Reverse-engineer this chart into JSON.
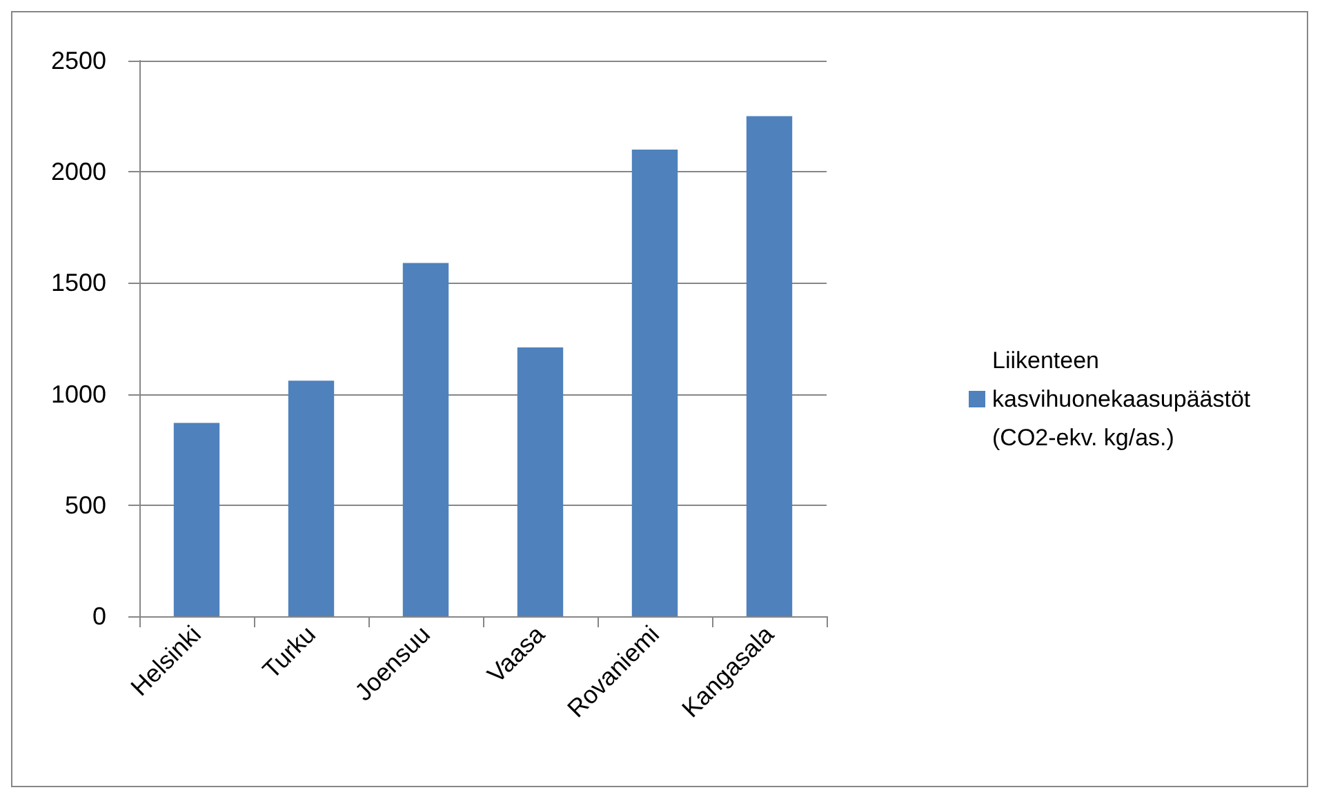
{
  "chart_data": {
    "type": "bar",
    "categories": [
      "Helsinki",
      "Turku",
      "Joensuu",
      "Vaasa",
      "Rovaniemi",
      "Kangasala"
    ],
    "series": [
      {
        "name": "Liikenteen kasvihuonekaasupäästöt (CO2-ekv. kg/as.)",
        "color": "#4f81bd",
        "values": [
          870,
          1060,
          1590,
          1210,
          2100,
          2250
        ]
      }
    ],
    "ylim": [
      0,
      2500
    ],
    "yticks": [
      0,
      500,
      1000,
      1500,
      2000,
      2500
    ],
    "grid": "y",
    "legend": "right"
  }
}
